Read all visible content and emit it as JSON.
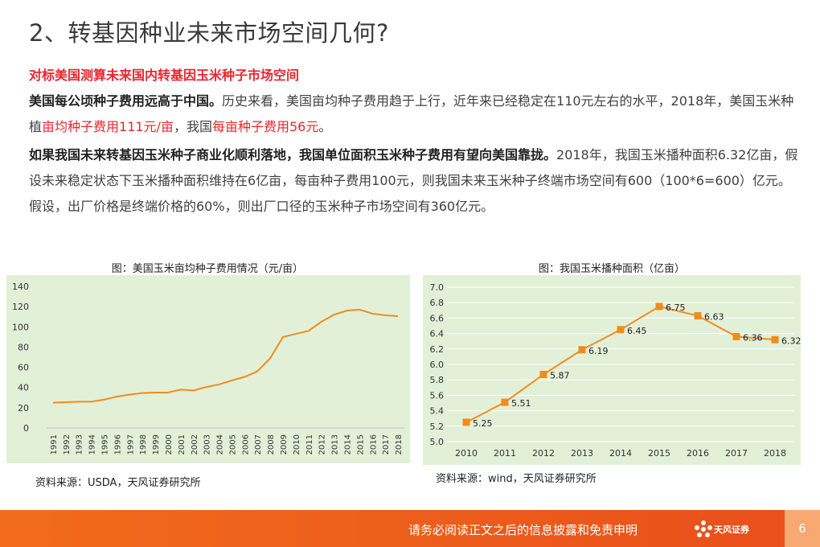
{
  "title": "2、转基因种业未来市场空间几何?",
  "subheading": "对标美国测算未来国内转基因玉米种子市场空间",
  "para1": {
    "bold": "美国每公顷种子费用远高于中国。",
    "t1": "历史来看，美国亩均种子费用趋于上行，近年来已经稳定在110元左右的水平，2018年，美国玉米种植",
    "red1": "亩均种子费用111元/亩",
    "t2": "，我国",
    "red2": "每亩种子费用56元",
    "t3": "。"
  },
  "para2": {
    "bold": "如果我国未来转基因玉米种子商业化顺利落地，我国单位面积玉米种子费用有望向美国靠拢。",
    "t1": "2018年，我国玉米播种面积6.32亿亩，假设未来稳定状态下玉米播种面积维持在6亿亩，每亩种子费用100元，则我国未来玉米种子终端市场空间有600（100*6=600）亿元。假设，出厂价格是终端价格的60%，则出厂口径的玉米种子市场空间有360亿元。"
  },
  "charts": {
    "left_title": "图：美国玉米亩均种子费用情况（元/亩）",
    "left_source": "资料来源：USDA，天风证券研究所",
    "right_title": "图：我国玉米播种面积（亿亩）",
    "right_source": "资料来源：wind，天风证券研究所"
  },
  "chart_data": [
    {
      "type": "line",
      "title": "图：美国玉米亩均种子费用情况（元/亩）",
      "x": [
        "1991",
        "1992",
        "1993",
        "1994",
        "1995",
        "1996",
        "1997",
        "1998",
        "1999",
        "2000",
        "2001",
        "2002",
        "2003",
        "2004",
        "2005",
        "2006",
        "2007",
        "2008",
        "2009",
        "2010",
        "2011",
        "2012",
        "2013",
        "2014",
        "2015",
        "2016",
        "2017",
        "2018"
      ],
      "values": [
        25,
        25.5,
        26,
        26,
        28,
        31,
        33,
        34.5,
        35,
        35,
        38,
        37,
        40.5,
        43,
        47,
        50.5,
        56,
        69,
        90,
        93,
        96,
        105,
        112,
        116,
        117,
        113,
        111.5,
        110.5
      ],
      "ylim": [
        0,
        140
      ],
      "yticks": [
        0,
        20,
        40,
        60,
        80,
        100,
        120,
        140
      ],
      "color": "#f08c1e",
      "grid": false
    },
    {
      "type": "line",
      "title": "图：我国玉米播种面积（亿亩）",
      "x": [
        "2010",
        "2011",
        "2012",
        "2013",
        "2014",
        "2015",
        "2016",
        "2017",
        "2018"
      ],
      "values": [
        5.25,
        5.51,
        5.87,
        6.19,
        6.45,
        6.75,
        6.63,
        6.36,
        6.32
      ],
      "labels": [
        "5.25",
        "5.51",
        "5.87",
        "6.19",
        "6.45",
        "6.75",
        "6.63",
        "6.36",
        "6.32"
      ],
      "ylim": [
        5.0,
        7.0
      ],
      "yticks": [
        "5.0",
        "5.2",
        "5.4",
        "5.6",
        "5.8",
        "6.0",
        "6.2",
        "6.4",
        "6.6",
        "6.8",
        "7.0"
      ],
      "color": "#f08c1e",
      "grid": true
    }
  ],
  "footer": {
    "disclaimer": "请务必阅读正文之后的信息披露和免责申明",
    "logo_text": "天风证券",
    "page": "6"
  }
}
